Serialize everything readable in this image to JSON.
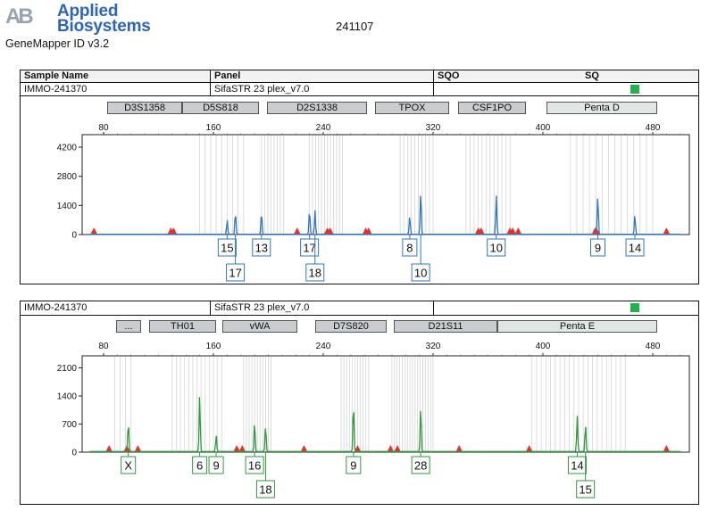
{
  "header": {
    "brand_line1": "Applied",
    "brand_line2": "Biosystems",
    "logo_letters": "AB",
    "software": "GeneMapper ID v3.2",
    "run_id": "241107"
  },
  "sample_table": {
    "columns": [
      "Sample Name",
      "Panel",
      "SQO",
      "SQ"
    ],
    "sample_name": "IMMO-241370",
    "panel": "SifaSTR 23 plex_v7.0"
  },
  "panel1": {
    "sample_name": "IMMO-241370",
    "panel": "SifaSTR 23 plex_v7.0",
    "dye_color": "#2f76c0",
    "loci": [
      "D3S1358",
      "D5S818",
      "D2S1338",
      "TPOX",
      "CSF1PO",
      "Penta D"
    ],
    "x_ticks": [
      80,
      160,
      240,
      320,
      400,
      480
    ],
    "y_ticks": [
      0,
      1400,
      2800,
      4200
    ],
    "alleles": [
      {
        "label": "15",
        "size": 170
      },
      {
        "label": "17",
        "size": 176
      },
      {
        "label": "13",
        "size": 195
      },
      {
        "label": "17",
        "size": 230
      },
      {
        "label": "18",
        "size": 234
      },
      {
        "label": "8",
        "size": 303
      },
      {
        "label": "10",
        "size": 311
      },
      {
        "label": "10",
        "size": 366
      },
      {
        "label": "9",
        "size": 440
      },
      {
        "label": "14",
        "size": 467
      }
    ]
  },
  "panel2": {
    "sample_name": "IMMO-241370",
    "panel": "SifaSTR 23 plex_v7.0",
    "dye_color": "#2e9a3b",
    "loci": [
      "...",
      "TH01",
      "vWA",
      "D7S820",
      "D21S11",
      "Penta E"
    ],
    "x_ticks": [
      80,
      160,
      240,
      320,
      400,
      480
    ],
    "y_ticks": [
      0,
      700,
      1400,
      2100
    ],
    "alleles": [
      {
        "label": "X",
        "size": 98
      },
      {
        "label": "6",
        "size": 150
      },
      {
        "label": "9",
        "size": 162
      },
      {
        "label": "16",
        "size": 190
      },
      {
        "label": "18",
        "size": 198
      },
      {
        "label": "9",
        "size": 262
      },
      {
        "label": "28",
        "size": 311
      },
      {
        "label": "14",
        "size": 425
      },
      {
        "label": "15",
        "size": 431
      }
    ]
  },
  "chart_data": [
    {
      "type": "line",
      "title": "",
      "xlabel": "",
      "ylabel": "",
      "xlim": [
        70,
        500
      ],
      "ylim": [
        0,
        4800
      ],
      "x_ticks": [
        80,
        160,
        240,
        320,
        400,
        480
      ],
      "y_ticks": [
        0,
        1400,
        2800,
        4200
      ],
      "series": [
        {
          "color": "#2f76c0",
          "peaks": [
            {
              "x": 170,
              "height": 700
            },
            {
              "x": 176,
              "height": 1100
            },
            {
              "x": 195,
              "height": 1100
            },
            {
              "x": 230,
              "height": 1200
            },
            {
              "x": 234,
              "height": 1150
            },
            {
              "x": 303,
              "height": 900
            },
            {
              "x": 311,
              "height": 2100
            },
            {
              "x": 366,
              "height": 1900
            },
            {
              "x": 440,
              "height": 1950
            },
            {
              "x": 467,
              "height": 950
            }
          ]
        }
      ],
      "size_standard_markers": [
        73,
        129,
        131,
        221,
        243,
        245,
        271,
        273,
        353,
        355,
        378,
        382,
        376,
        438,
        439,
        490
      ]
    },
    {
      "type": "line",
      "title": "",
      "xlabel": "",
      "ylabel": "",
      "xlim": [
        70,
        500
      ],
      "ylim": [
        0,
        2400
      ],
      "x_ticks": [
        80,
        160,
        240,
        320,
        400,
        480
      ],
      "y_ticks": [
        0,
        700,
        1400,
        2100
      ],
      "series": [
        {
          "color": "#2e9a3b",
          "peaks": [
            {
              "x": 98,
              "height": 750
            },
            {
              "x": 150,
              "height": 1450
            },
            {
              "x": 162,
              "height": 420
            },
            {
              "x": 190,
              "height": 760
            },
            {
              "x": 198,
              "height": 680
            },
            {
              "x": 262,
              "height": 1250
            },
            {
              "x": 311,
              "height": 1150
            },
            {
              "x": 425,
              "height": 900
            },
            {
              "x": 431,
              "height": 700
            }
          ]
        }
      ],
      "size_standard_markers": [
        84,
        97,
        105,
        177,
        181,
        226,
        265,
        289,
        294,
        339,
        390,
        490
      ]
    }
  ]
}
